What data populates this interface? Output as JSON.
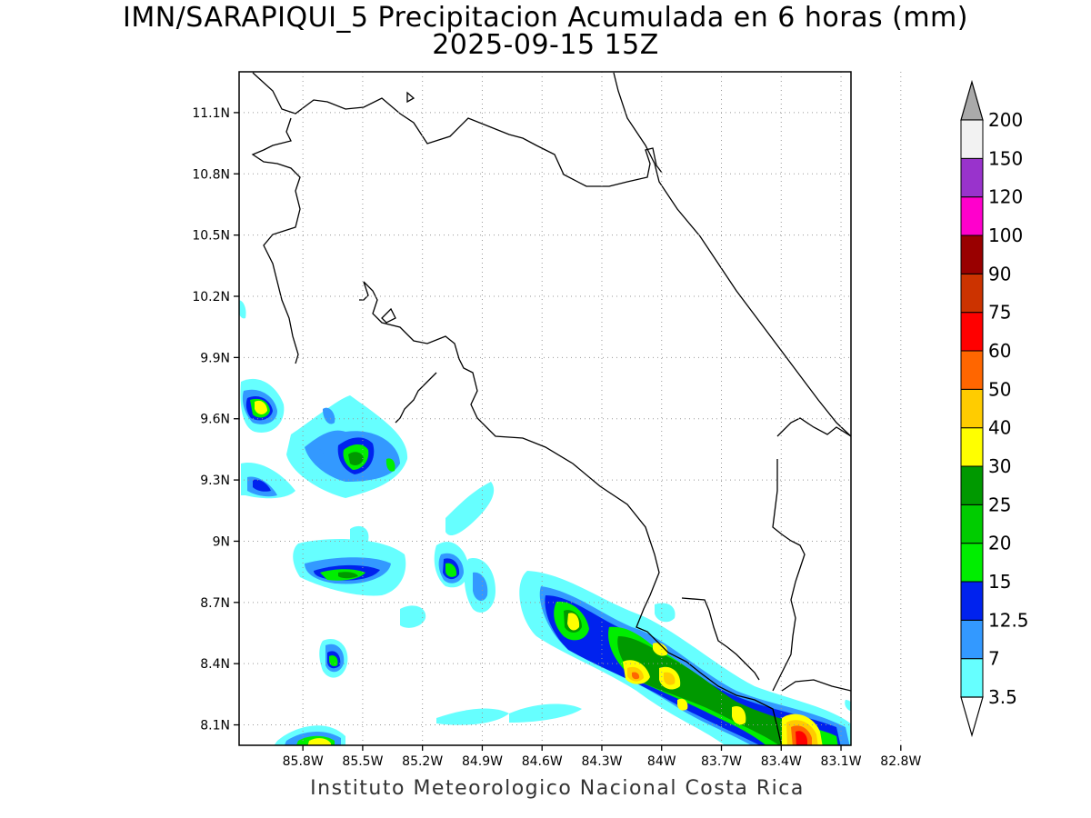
{
  "header": {
    "title_line1": "IMN/SARAPIQUI_5 Precipitacion Acumulada en 6 horas (mm)",
    "title_line2": "2025-09-15 15Z"
  },
  "map": {
    "lat_ticks": [
      "11.1N",
      "10.8N",
      "10.5N",
      "10.2N",
      "9.9N",
      "9.6N",
      "9.3N",
      "9N",
      "8.7N",
      "8.4N",
      "8.1N"
    ],
    "lon_ticks": [
      "85.8W",
      "85.5W",
      "85.2W",
      "84.9W",
      "84.6W",
      "84.3W",
      "84W",
      "83.7W",
      "83.4W",
      "83.1W",
      "82.8W"
    ],
    "lat_values": [
      11.1,
      10.8,
      10.5,
      10.2,
      9.9,
      9.6,
      9.3,
      9.0,
      8.7,
      8.4,
      8.1
    ],
    "lon_values": [
      -85.8,
      -85.5,
      -85.2,
      -84.9,
      -84.6,
      -84.3,
      -84.0,
      -83.7,
      -83.4,
      -83.1,
      -82.8
    ],
    "lat_range": [
      8.0,
      11.3
    ],
    "lon_range": [
      -86.12,
      -83.05
    ],
    "grid": "dotted",
    "region": "Costa Rica"
  },
  "legend": {
    "levels": [
      "3.5",
      "7",
      "12.5",
      "15",
      "20",
      "25",
      "30",
      "40",
      "50",
      "60",
      "75",
      "90",
      "100",
      "120",
      "150",
      "200"
    ],
    "colors": [
      "#66ffff",
      "#3399ff",
      "#0022ee",
      "#00ee00",
      "#00cc00",
      "#009900",
      "#ffff00",
      "#ffcc00",
      "#ff6600",
      "#ff0000",
      "#cc3300",
      "#990000",
      "#ff00cc",
      "#9933cc",
      "#f2f2f2",
      "#aaaaaa"
    ],
    "placement": "right"
  },
  "footer": {
    "credit": "Instituto Meteorologico Nacional Costa Rica"
  }
}
